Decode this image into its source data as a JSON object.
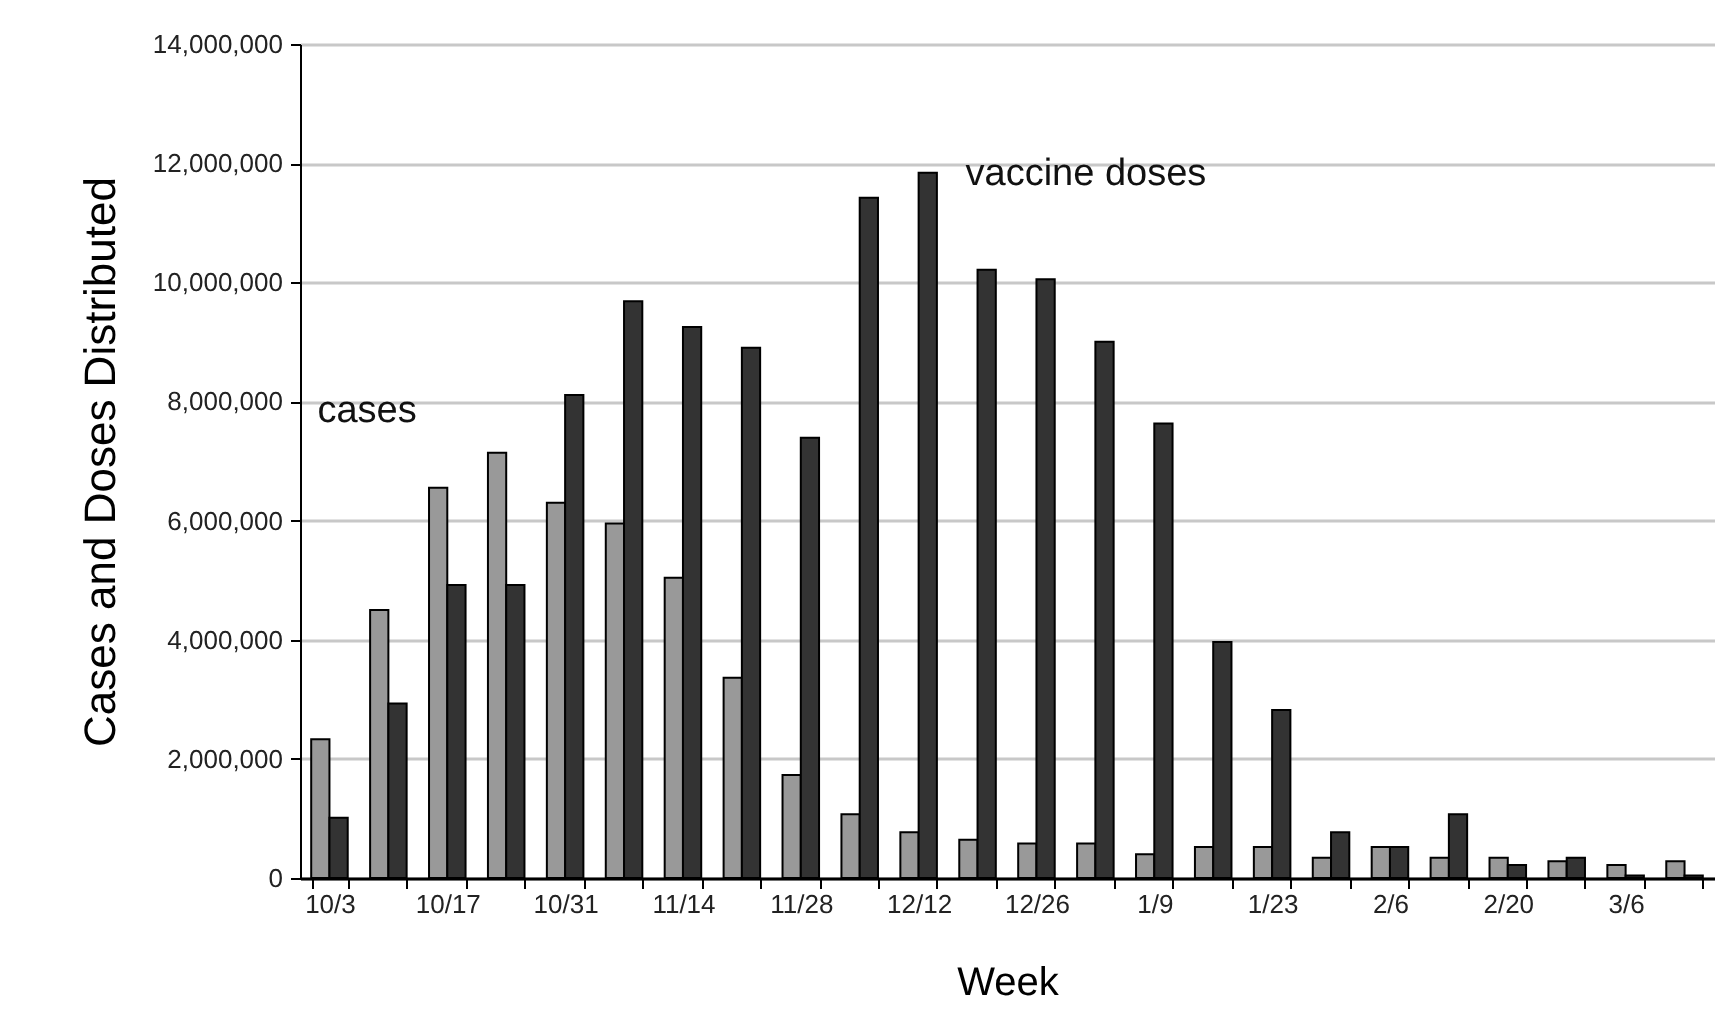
{
  "chart_data": {
    "type": "bar",
    "xlabel": "Week",
    "ylabel": "Cases and Doses Distributed",
    "categories": [
      "10/3",
      null,
      "10/17",
      null,
      "10/31",
      null,
      "11/14",
      null,
      "11/28",
      null,
      "12/12",
      null,
      "12/26",
      null,
      "1/9",
      null,
      "1/23",
      null,
      "2/6",
      null,
      "2/20",
      null,
      "3/6",
      null
    ],
    "series": [
      {
        "name": "cases",
        "color": "#999999",
        "values": [
          2330000,
          4500000,
          6550000,
          7140000,
          6300000,
          5950000,
          5040000,
          3360000,
          1730000,
          1070000,
          770000,
          640000,
          580000,
          580000,
          400000,
          520000,
          520000,
          340000,
          520000,
          340000,
          340000,
          280000,
          220000,
          280000
        ]
      },
      {
        "name": "vaccine doses",
        "color": "#333333",
        "values": [
          1010000,
          2930000,
          4920000,
          4920000,
          8110000,
          9680000,
          9250000,
          8900000,
          7390000,
          11420000,
          11840000,
          10210000,
          10050000,
          9000000,
          7630000,
          3960000,
          2820000,
          770000,
          520000,
          1070000,
          220000,
          340000,
          40000,
          40000
        ]
      }
    ],
    "ylim": [
      0,
      14000000
    ],
    "yticks": [
      0,
      {
        "value": 2000000,
        "label": "2,000,000"
      },
      {
        "value": 4000000,
        "label": "4,000,000"
      },
      {
        "value": 6000000,
        "label": "6,000,000"
      },
      {
        "value": 8000000,
        "label": "8,000,000"
      },
      {
        "value": 10000000,
        "label": "10,000,000"
      },
      {
        "value": 12000000,
        "label": "12,000,000"
      },
      {
        "value": 14000000,
        "label": "14,000,000"
      }
    ],
    "grid": "y",
    "legend": false
  }
}
